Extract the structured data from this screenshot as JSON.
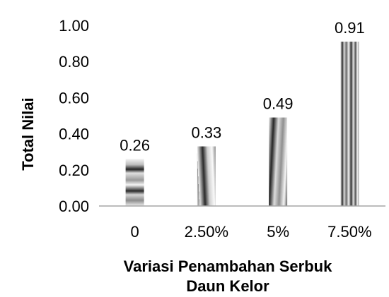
{
  "chart_data": {
    "type": "bar",
    "categories": [
      "0",
      "2.50%",
      "5%",
      "7.50%"
    ],
    "values": [
      0.26,
      0.33,
      0.49,
      0.91
    ],
    "data_labels": [
      "0.26",
      "0.33",
      "0.49",
      "0.91"
    ],
    "ylabel": "Total Nilai",
    "xlabel_lines": [
      "Variasi Penambahan Serbuk",
      "Daun Kelor"
    ],
    "ylim": [
      0,
      1.0
    ],
    "yticks": [
      "0.00",
      "0.20",
      "0.40",
      "0.60",
      "0.80",
      "1.00"
    ],
    "ytick_values": [
      0,
      0.2,
      0.4,
      0.6,
      0.8,
      1.0
    ],
    "grid": false,
    "legend": "none",
    "bar_patterns": [
      "horizontal-stripes",
      "diagonal-stripes",
      "diagonal-stripes-steep",
      "vertical-stripes"
    ]
  }
}
